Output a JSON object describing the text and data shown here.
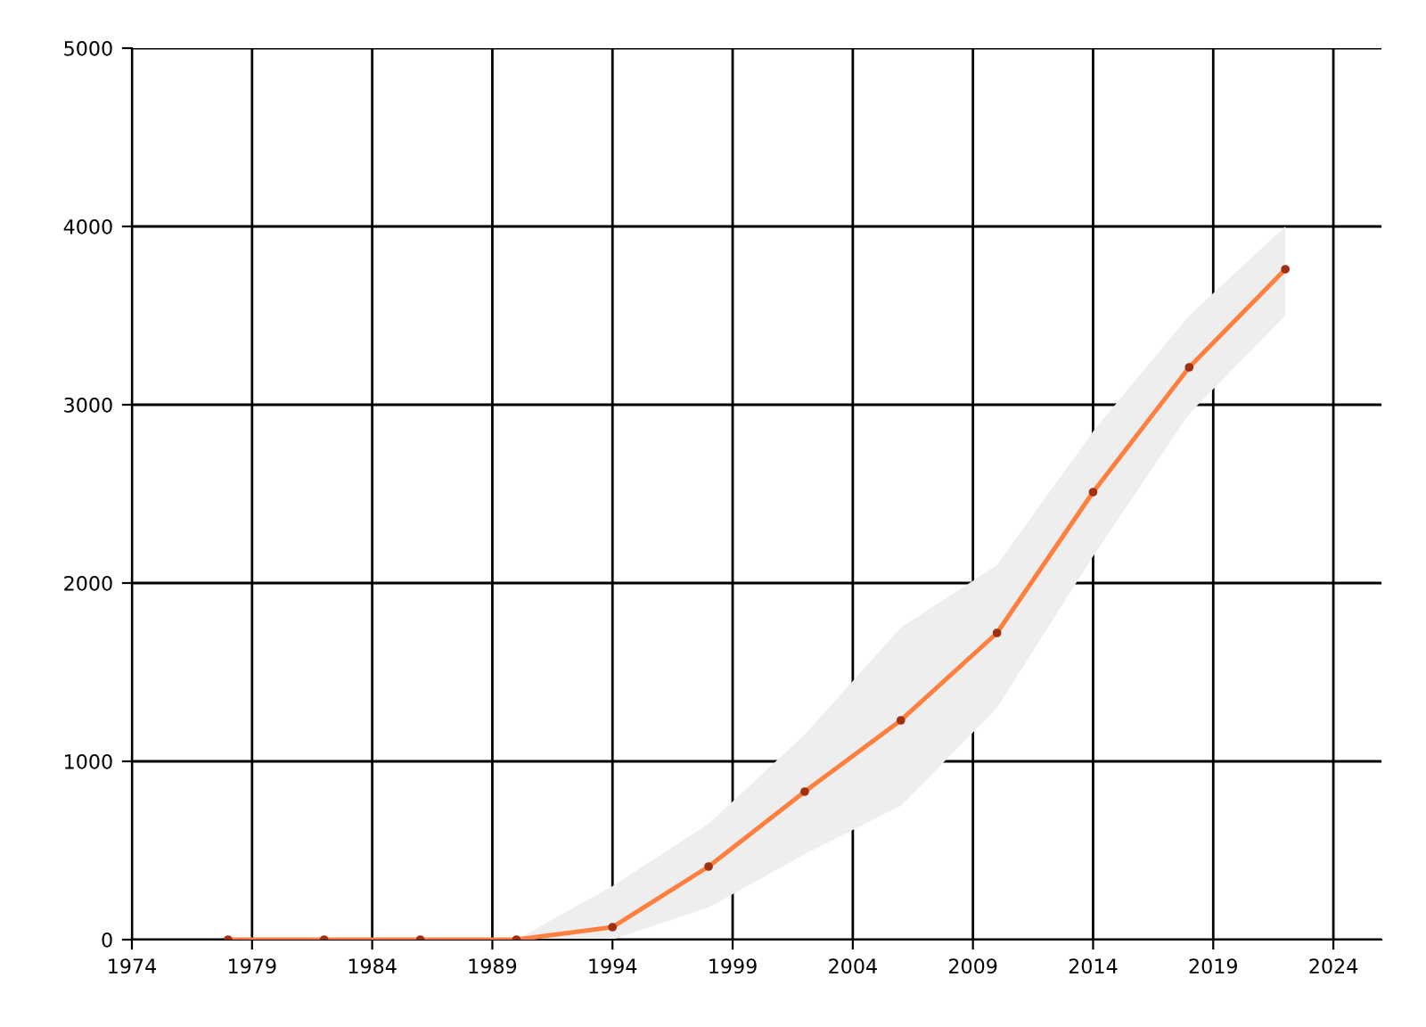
{
  "chart_data": {
    "type": "line",
    "x": [
      1978,
      1982,
      1986,
      1990,
      1994,
      1998,
      2002,
      2006,
      2010,
      2014,
      2018,
      2022
    ],
    "series": [
      {
        "color": "#ff7f3f",
        "values": [
          0,
          0,
          0,
          0,
          70,
          410,
          830,
          1230,
          1720,
          2510,
          3210,
          3760
        ],
        "lower": [
          0,
          0,
          0,
          0,
          0,
          180,
          480,
          750,
          1300,
          2150,
          2950,
          3500
        ],
        "upper": [
          0,
          0,
          0,
          0,
          300,
          650,
          1150,
          1750,
          2100,
          2850,
          3500,
          4000
        ]
      }
    ],
    "xlim": [
      1974,
      2026
    ],
    "xticks": [
      1974,
      1979,
      1984,
      1989,
      1994,
      1999,
      2004,
      2009,
      2014,
      2019,
      2024
    ],
    "ylim": [
      0,
      5000
    ],
    "yticks": [
      0,
      1000,
      2000,
      3000,
      4000,
      5000
    ],
    "grid": true,
    "marker": "circle",
    "line_style": "solid"
  }
}
